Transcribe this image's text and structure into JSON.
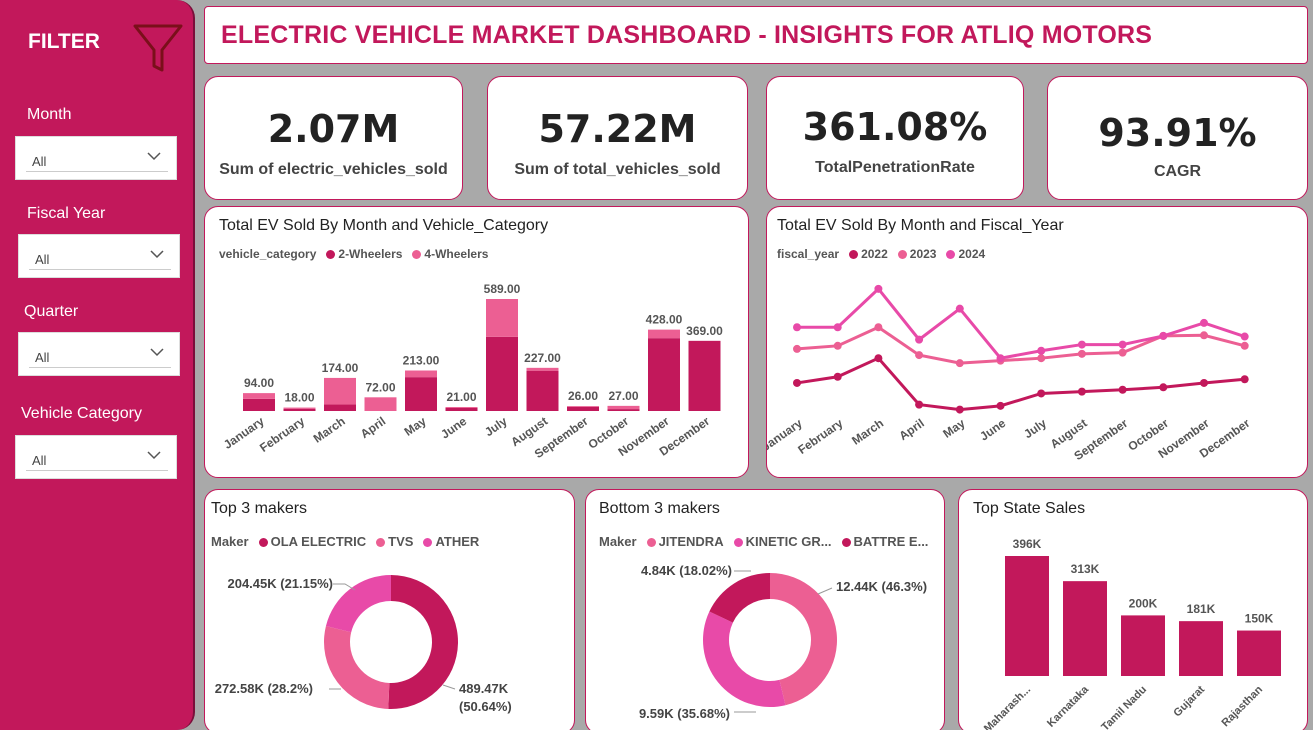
{
  "sidebar": {
    "title": "FILTER",
    "slicers": [
      {
        "label": "Month",
        "value": "All"
      },
      {
        "label": "Fiscal Year",
        "value": "All"
      },
      {
        "label": "Quarter",
        "value": "All"
      },
      {
        "label": "Vehicle Category",
        "value": "All"
      }
    ]
  },
  "header": {
    "title": "ELECTRIC VEHICLE MARKET DASHBOARD - INSIGHTS FOR ATLIQ MOTORS"
  },
  "kpis": [
    {
      "value": "2.07M",
      "label": "Sum of electric_vehicles_sold"
    },
    {
      "value": "57.22M",
      "label": "Sum of total_vehicles_sold"
    },
    {
      "value": "361.08%",
      "label": "TotalPenetrationRate"
    },
    {
      "value": "93.91%",
      "label": "CAGR"
    }
  ],
  "colors": {
    "primary": "#c2185b",
    "light": "#ec5f93",
    "mid": "#e84aa8",
    "background": "#a9a9a9"
  },
  "chart_data": [
    {
      "type": "bar",
      "title": "Total EV Sold By Month and Vehicle_Category",
      "legend_title": "vehicle_category",
      "stacked": true,
      "categories": [
        "January",
        "February",
        "March",
        "April",
        "May",
        "June",
        "July",
        "August",
        "September",
        "October",
        "November",
        "December"
      ],
      "totals_labels": [
        "94.00",
        "18.00",
        "174.00",
        "72.00",
        "213.00",
        "21.00",
        "589.00",
        "227.00",
        "26.00",
        "27.00",
        "428.00",
        "369.00"
      ],
      "series": [
        {
          "name": "2-Wheelers",
          "color": "#c2185b",
          "values": [
            64,
            12,
            34,
            0,
            178,
            16,
            390,
            212,
            22,
            10,
            383,
            369
          ]
        },
        {
          "name": "4-Wheelers",
          "color": "#ec5f93",
          "values": [
            30,
            6,
            140,
            72,
            35,
            5,
            199,
            15,
            4,
            17,
            45,
            0
          ]
        }
      ]
    },
    {
      "type": "line",
      "title": "Total EV Sold By Month and Fiscal_Year",
      "legend_title": "fiscal_year",
      "categories": [
        "January",
        "February",
        "March",
        "April",
        "May",
        "June",
        "July",
        "August",
        "September",
        "October",
        "November",
        "December"
      ],
      "series": [
        {
          "name": "2022",
          "color": "#c2185b",
          "values": [
            55,
            65,
            95,
            20,
            12,
            18,
            38,
            41,
            44,
            48,
            55,
            61
          ]
        },
        {
          "name": "2023",
          "color": "#ec5f93",
          "values": [
            110,
            115,
            145,
            100,
            87,
            91,
            95,
            102,
            104,
            131,
            132,
            115
          ]
        },
        {
          "name": "2024",
          "color": "#e84aa8",
          "values": [
            145,
            145,
            207,
            125,
            175,
            95,
            107,
            117,
            117,
            131,
            152,
            130
          ]
        }
      ]
    },
    {
      "type": "pie",
      "title": "Top 3 makers",
      "legend_title": "Maker",
      "donut": true,
      "labels": [
        "OLA ELECTRIC",
        "TVS",
        "ATHER"
      ],
      "values": [
        489.47,
        272.58,
        204.45
      ],
      "colors": [
        "#c2185b",
        "#ec5f93",
        "#e84aa8"
      ],
      "slice_labels": [
        "489.47K (50.64%)",
        "272.58K (28.2%)",
        "204.45K (21.15%)"
      ]
    },
    {
      "type": "pie",
      "title": "Bottom 3 makers",
      "legend_title": "Maker",
      "donut": true,
      "labels": [
        "JITENDRA",
        "KINETIC GR...",
        "BATTRE E..."
      ],
      "values": [
        12.44,
        9.59,
        4.84
      ],
      "colors": [
        "#ec5f93",
        "#e84aa8",
        "#c2185b"
      ],
      "slice_labels": [
        "12.44K (46.3%)",
        "9.59K (35.68%)",
        "4.84K (18.02%)"
      ]
    },
    {
      "type": "bar",
      "title": "Top State Sales",
      "categories": [
        "Maharash...",
        "Karnataka",
        "Tamil Nadu",
        "Gujarat",
        "Rajasthan"
      ],
      "values": [
        396,
        313,
        200,
        181,
        150
      ],
      "value_labels": [
        "396K",
        "313K",
        "200K",
        "181K",
        "150K"
      ],
      "color": "#c2185b"
    }
  ]
}
